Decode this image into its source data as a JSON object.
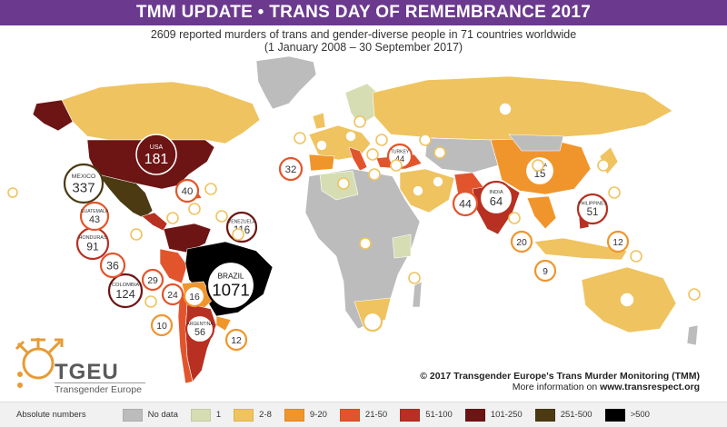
{
  "header": {
    "title": "TMM UPDATE • TRANS DAY OF REMEMBRANCE 2017",
    "subtitle_line1": "2609 reported murders of trans and gender-diverse people in 71 countries worldwide",
    "subtitle_line2": "(1 January 2008 – 30 September 2017)"
  },
  "credit": {
    "line1": "© 2017 Transgender Europe's Trans Murder Monitoring (TMM)",
    "line2_prefix": "More information on ",
    "line2_link": "www.transrespect.org"
  },
  "logo": {
    "name": "TGEU",
    "subtitle": "Transgender Europe"
  },
  "legend": {
    "title": "Absolute numbers",
    "items": [
      {
        "label": "No data",
        "color": "#bcbcbc"
      },
      {
        "label": "1",
        "color": "#d6ddb2"
      },
      {
        "label": "2-8",
        "color": "#efc35f"
      },
      {
        "label": "9-20",
        "color": "#f0952c"
      },
      {
        "label": "21-50",
        "color": "#e2552c"
      },
      {
        "label": "51-100",
        "color": "#b73021"
      },
      {
        "label": "101-250",
        "color": "#6d1414"
      },
      {
        "label": "251-500",
        "color": "#4b3a12"
      },
      {
        "label": ">500",
        "color": "#000000"
      }
    ]
  },
  "bubbles": [
    {
      "name": "usa",
      "label": "USA",
      "value": "181",
      "color": "#6d1414",
      "text": "#fff"
    },
    {
      "name": "mexico",
      "label": "MEXICO",
      "value": "337",
      "color": "#ffffff",
      "text": "#333",
      "ring": "#4b3a12"
    },
    {
      "name": "brazil",
      "label": "BRAZIL",
      "value": "1071",
      "color": "#ffffff",
      "text": "#111",
      "ring": "#000000"
    },
    {
      "name": "venezuela",
      "label": "VENEZUELA",
      "value": "116",
      "color": "#ffffff",
      "text": "#333",
      "ring": "#6d1414"
    },
    {
      "name": "colombia",
      "label": "COLOMBIA",
      "value": "124",
      "color": "#ffffff",
      "text": "#333",
      "ring": "#6d1414"
    },
    {
      "name": "honduras",
      "label": "HONDURAS",
      "value": "91",
      "color": "#ffffff",
      "text": "#333",
      "ring": "#b73021"
    },
    {
      "name": "guatemala",
      "label": "GUATEMALA",
      "value": "43",
      "color": "#ffffff",
      "text": "#333",
      "ring": "#e2552c"
    },
    {
      "name": "el-salvador",
      "label": "",
      "value": "36",
      "color": "#ffffff",
      "text": "#333",
      "ring": "#e2552c"
    },
    {
      "name": "argentina",
      "label": "ARGENTINA",
      "value": "56",
      "color": "#ffffff",
      "text": "#333",
      "ring": "#b73021"
    },
    {
      "name": "india",
      "label": "INDIA",
      "value": "64",
      "color": "#ffffff",
      "text": "#333",
      "ring": "#b73021"
    },
    {
      "name": "pakistan",
      "label": "",
      "value": "44",
      "color": "#ffffff",
      "text": "#333",
      "ring": "#e2552c"
    },
    {
      "name": "turkey",
      "label": "TURKEY",
      "value": "44",
      "color": "#ffffff",
      "text": "#333",
      "ring": "#e2552c"
    },
    {
      "name": "philippines",
      "label": "PHILIPPINES",
      "value": "51",
      "color": "#ffffff",
      "text": "#333",
      "ring": "#b73021"
    },
    {
      "name": "china",
      "label": "CHINA",
      "value": "15",
      "color": "#ffffff",
      "text": "#333",
      "ring": "#f0952c"
    },
    {
      "name": "italy",
      "label": "",
      "value": "32",
      "color": "#ffffff",
      "text": "#333",
      "ring": "#e2552c"
    },
    {
      "name": "dominican-rep",
      "label": "",
      "value": "40",
      "color": "#ffffff",
      "text": "#333",
      "ring": "#e2552c"
    },
    {
      "name": "peru",
      "label": "",
      "value": "29",
      "color": "#ffffff",
      "text": "#333",
      "ring": "#e2552c"
    },
    {
      "name": "chile",
      "label": "",
      "value": "24",
      "color": "#ffffff",
      "text": "#333",
      "ring": "#e2552c"
    },
    {
      "name": "bolivia",
      "label": "",
      "value": "16",
      "color": "#ffffff",
      "text": "#333",
      "ring": "#f0952c"
    },
    {
      "name": "malaysia",
      "label": "",
      "value": "20",
      "color": "#ffffff",
      "text": "#333",
      "ring": "#f0952c"
    },
    {
      "name": "thailand",
      "label": "",
      "value": "12",
      "color": "#ffffff",
      "text": "#333",
      "ring": "#f0952c"
    },
    {
      "name": "indonesia",
      "label": "",
      "value": "9",
      "color": "#ffffff",
      "text": "#333",
      "ring": "#f0952c"
    },
    {
      "name": "uruguay",
      "label": "",
      "value": "12",
      "color": "#ffffff",
      "text": "#333",
      "ring": "#f0952c"
    },
    {
      "name": "ecuador",
      "label": "",
      "value": "10",
      "color": "#ffffff",
      "text": "#333",
      "ring": "#f0952c"
    },
    {
      "name": "south-africa",
      "label": "",
      "value": "",
      "color": "#ffffff",
      "text": "#333",
      "ring": "#efc35f"
    }
  ]
}
